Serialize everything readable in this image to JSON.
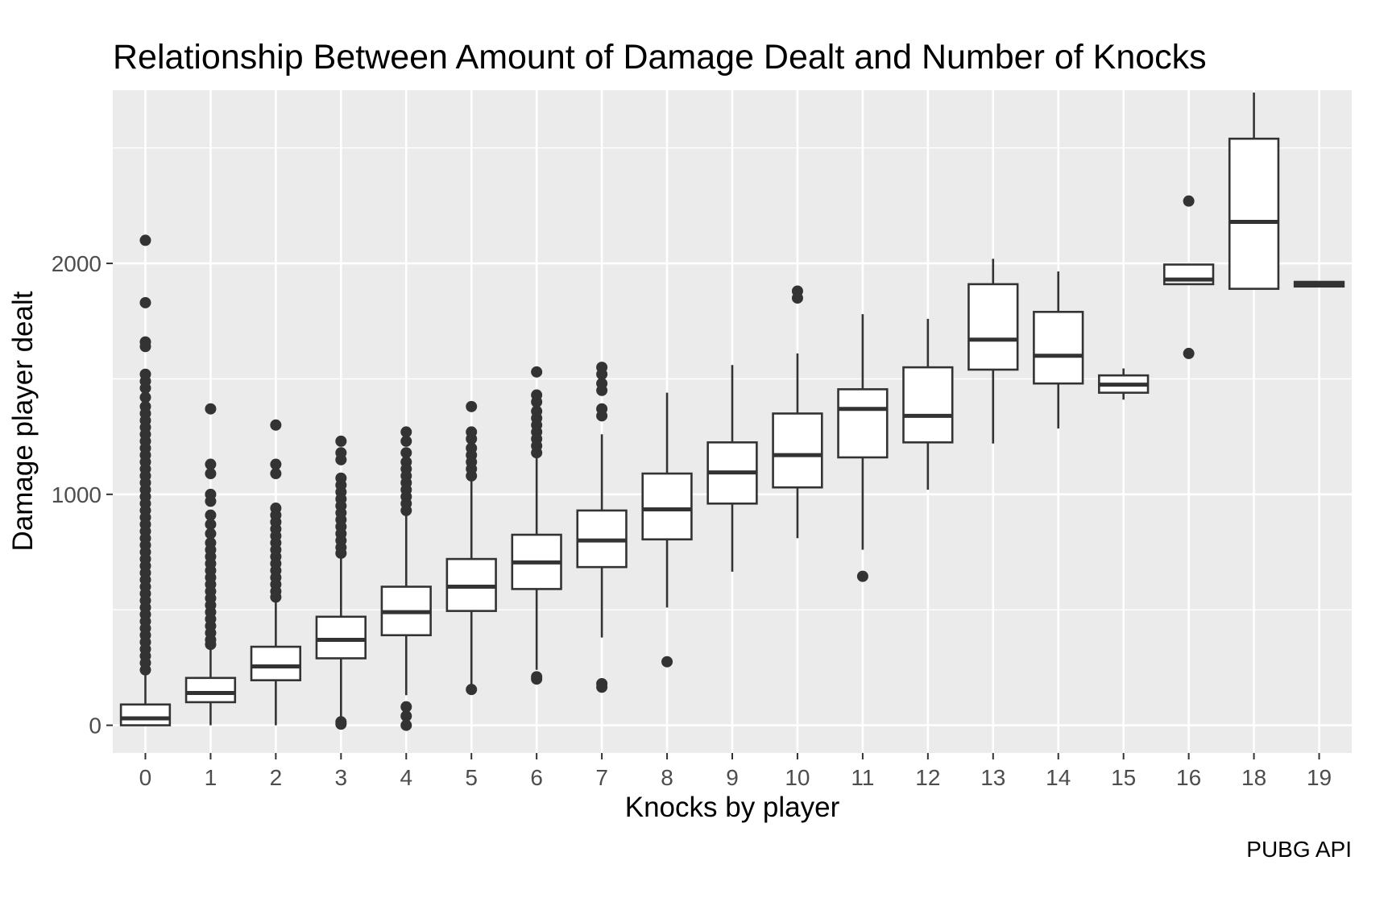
{
  "chart_data": {
    "type": "boxplot",
    "title": "Relationship Between Amount of Damage Dealt and Number of Knocks",
    "xlabel": "Knocks by player",
    "ylabel": "Damage player dealt",
    "caption": "PUBG API",
    "ylim": [
      -120,
      2750
    ],
    "y_ticks": [
      0,
      1000,
      2000
    ],
    "y_tick_labels": [
      "0",
      "1000",
      "2000"
    ],
    "grid": true,
    "categories": [
      "0",
      "1",
      "2",
      "3",
      "4",
      "5",
      "6",
      "7",
      "8",
      "9",
      "10",
      "11",
      "12",
      "13",
      "14",
      "15",
      "16",
      "18",
      "19"
    ],
    "boxes": [
      {
        "x": "0",
        "min": 0,
        "q1": 0,
        "median": 30,
        "q3": 90,
        "max": 220
      },
      {
        "x": "1",
        "min": 0,
        "q1": 100,
        "median": 140,
        "q3": 205,
        "max": 345
      },
      {
        "x": "2",
        "min": 0,
        "q1": 195,
        "median": 255,
        "q3": 340,
        "max": 545
      },
      {
        "x": "3",
        "min": 20,
        "q1": 290,
        "median": 370,
        "q3": 470,
        "max": 740
      },
      {
        "x": "4",
        "min": 130,
        "q1": 390,
        "median": 490,
        "q3": 600,
        "max": 920
      },
      {
        "x": "5",
        "min": 160,
        "q1": 495,
        "median": 600,
        "q3": 720,
        "max": 1060
      },
      {
        "x": "6",
        "min": 240,
        "q1": 590,
        "median": 705,
        "q3": 825,
        "max": 1160
      },
      {
        "x": "7",
        "min": 380,
        "q1": 685,
        "median": 800,
        "q3": 930,
        "max": 1260
      },
      {
        "x": "8",
        "min": 510,
        "q1": 805,
        "median": 935,
        "q3": 1090,
        "max": 1440
      },
      {
        "x": "9",
        "min": 665,
        "q1": 960,
        "median": 1095,
        "q3": 1225,
        "max": 1560
      },
      {
        "x": "10",
        "min": 810,
        "q1": 1030,
        "median": 1170,
        "q3": 1350,
        "max": 1610
      },
      {
        "x": "11",
        "min": 760,
        "q1": 1160,
        "median": 1370,
        "q3": 1455,
        "max": 1780
      },
      {
        "x": "12",
        "min": 1020,
        "q1": 1225,
        "median": 1340,
        "q3": 1550,
        "max": 1760
      },
      {
        "x": "13",
        "min": 1220,
        "q1": 1540,
        "median": 1670,
        "q3": 1910,
        "max": 2020
      },
      {
        "x": "14",
        "min": 1285,
        "q1": 1480,
        "median": 1600,
        "q3": 1790,
        "max": 1965
      },
      {
        "x": "15",
        "min": 1410,
        "q1": 1440,
        "median": 1475,
        "q3": 1515,
        "max": 1545
      },
      {
        "x": "16",
        "min": 1910,
        "q1": 1910,
        "median": 1930,
        "q3": 1995,
        "max": 1995
      },
      {
        "x": "18",
        "min": 1890,
        "q1": 1890,
        "median": 2180,
        "q3": 2540,
        "max": 2740
      },
      {
        "x": "19",
        "min": 1900,
        "q1": 1900,
        "median": 1910,
        "q3": 1920,
        "max": 1920
      }
    ],
    "outliers": {
      "0": [
        2100,
        1830,
        1660,
        1640,
        1520,
        1490,
        1460,
        1420,
        1380,
        1350,
        1320,
        1290,
        1260,
        1230,
        1200,
        1170,
        1140,
        1110,
        1080,
        1050,
        1020,
        990,
        960,
        930,
        900,
        870,
        840,
        810,
        780,
        750,
        720,
        690,
        660,
        630,
        600,
        570,
        540,
        510,
        480,
        450,
        420,
        390,
        360,
        330,
        300,
        270,
        240
      ],
      "1": [
        1370,
        1130,
        1090,
        1000,
        970,
        910,
        870,
        830,
        790,
        760,
        730,
        700,
        670,
        640,
        610,
        580,
        550,
        520,
        490,
        460,
        430,
        400,
        370,
        350
      ],
      "2": [
        1300,
        1130,
        1090,
        940,
        910,
        880,
        850,
        820,
        790,
        760,
        730,
        700,
        670,
        640,
        610,
        580,
        555
      ],
      "3": [
        1230,
        1180,
        1150,
        1070,
        1040,
        1010,
        980,
        950,
        920,
        890,
        860,
        830,
        800,
        770,
        745,
        15,
        5
      ],
      "4": [
        1270,
        1230,
        1180,
        1140,
        1110,
        1080,
        1050,
        1020,
        990,
        960,
        930,
        80,
        40,
        0
      ],
      "5": [
        1380,
        1270,
        1240,
        1200,
        1170,
        1140,
        1110,
        1080,
        155
      ],
      "6": [
        1530,
        1430,
        1400,
        1360,
        1330,
        1300,
        1270,
        1240,
        1210,
        1180,
        210,
        200
      ],
      "7": [
        1550,
        1520,
        1480,
        1450,
        1370,
        1340,
        180,
        165
      ],
      "8": [
        275
      ],
      "10": [
        1880,
        1850
      ],
      "11": [
        645
      ],
      "16": [
        2270,
        1610
      ]
    }
  }
}
